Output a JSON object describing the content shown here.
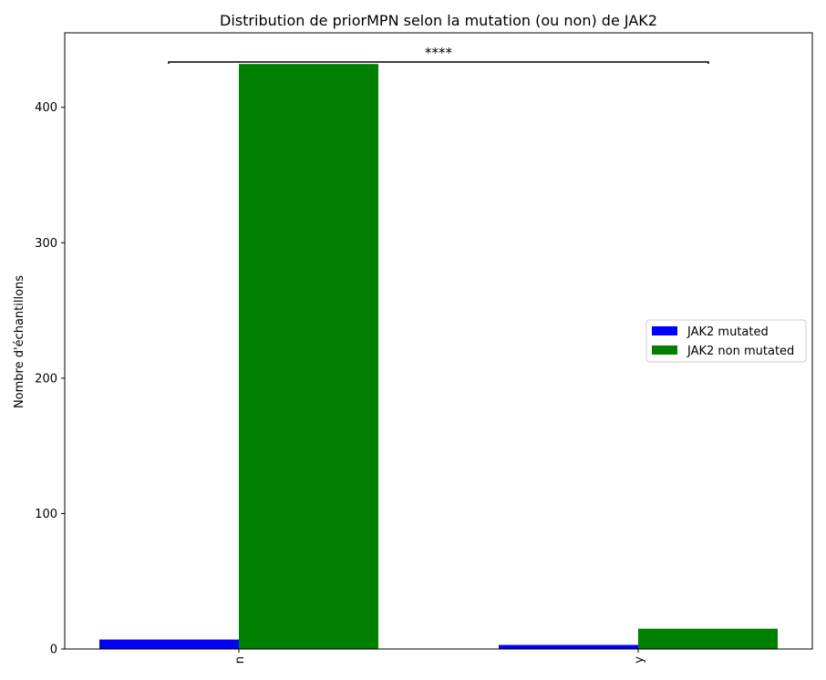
{
  "chart_data": {
    "type": "bar",
    "title": "Distribution de priorMPN selon la mutation (ou non) de JAK2",
    "xlabel": "",
    "ylabel": "Nombre d'échantillons",
    "categories": [
      "n",
      "y"
    ],
    "series": [
      {
        "name": "JAK2 mutated",
        "color": "#0000ff",
        "values": [
          7,
          3
        ]
      },
      {
        "name": "JAK2 non mutated",
        "color": "#008000",
        "values": [
          432,
          15
        ]
      }
    ],
    "ylim": [
      0,
      455
    ],
    "yticks": [
      0,
      100,
      200,
      300,
      400
    ],
    "annotation": "****",
    "legend_position": "center-right",
    "grid": false
  }
}
